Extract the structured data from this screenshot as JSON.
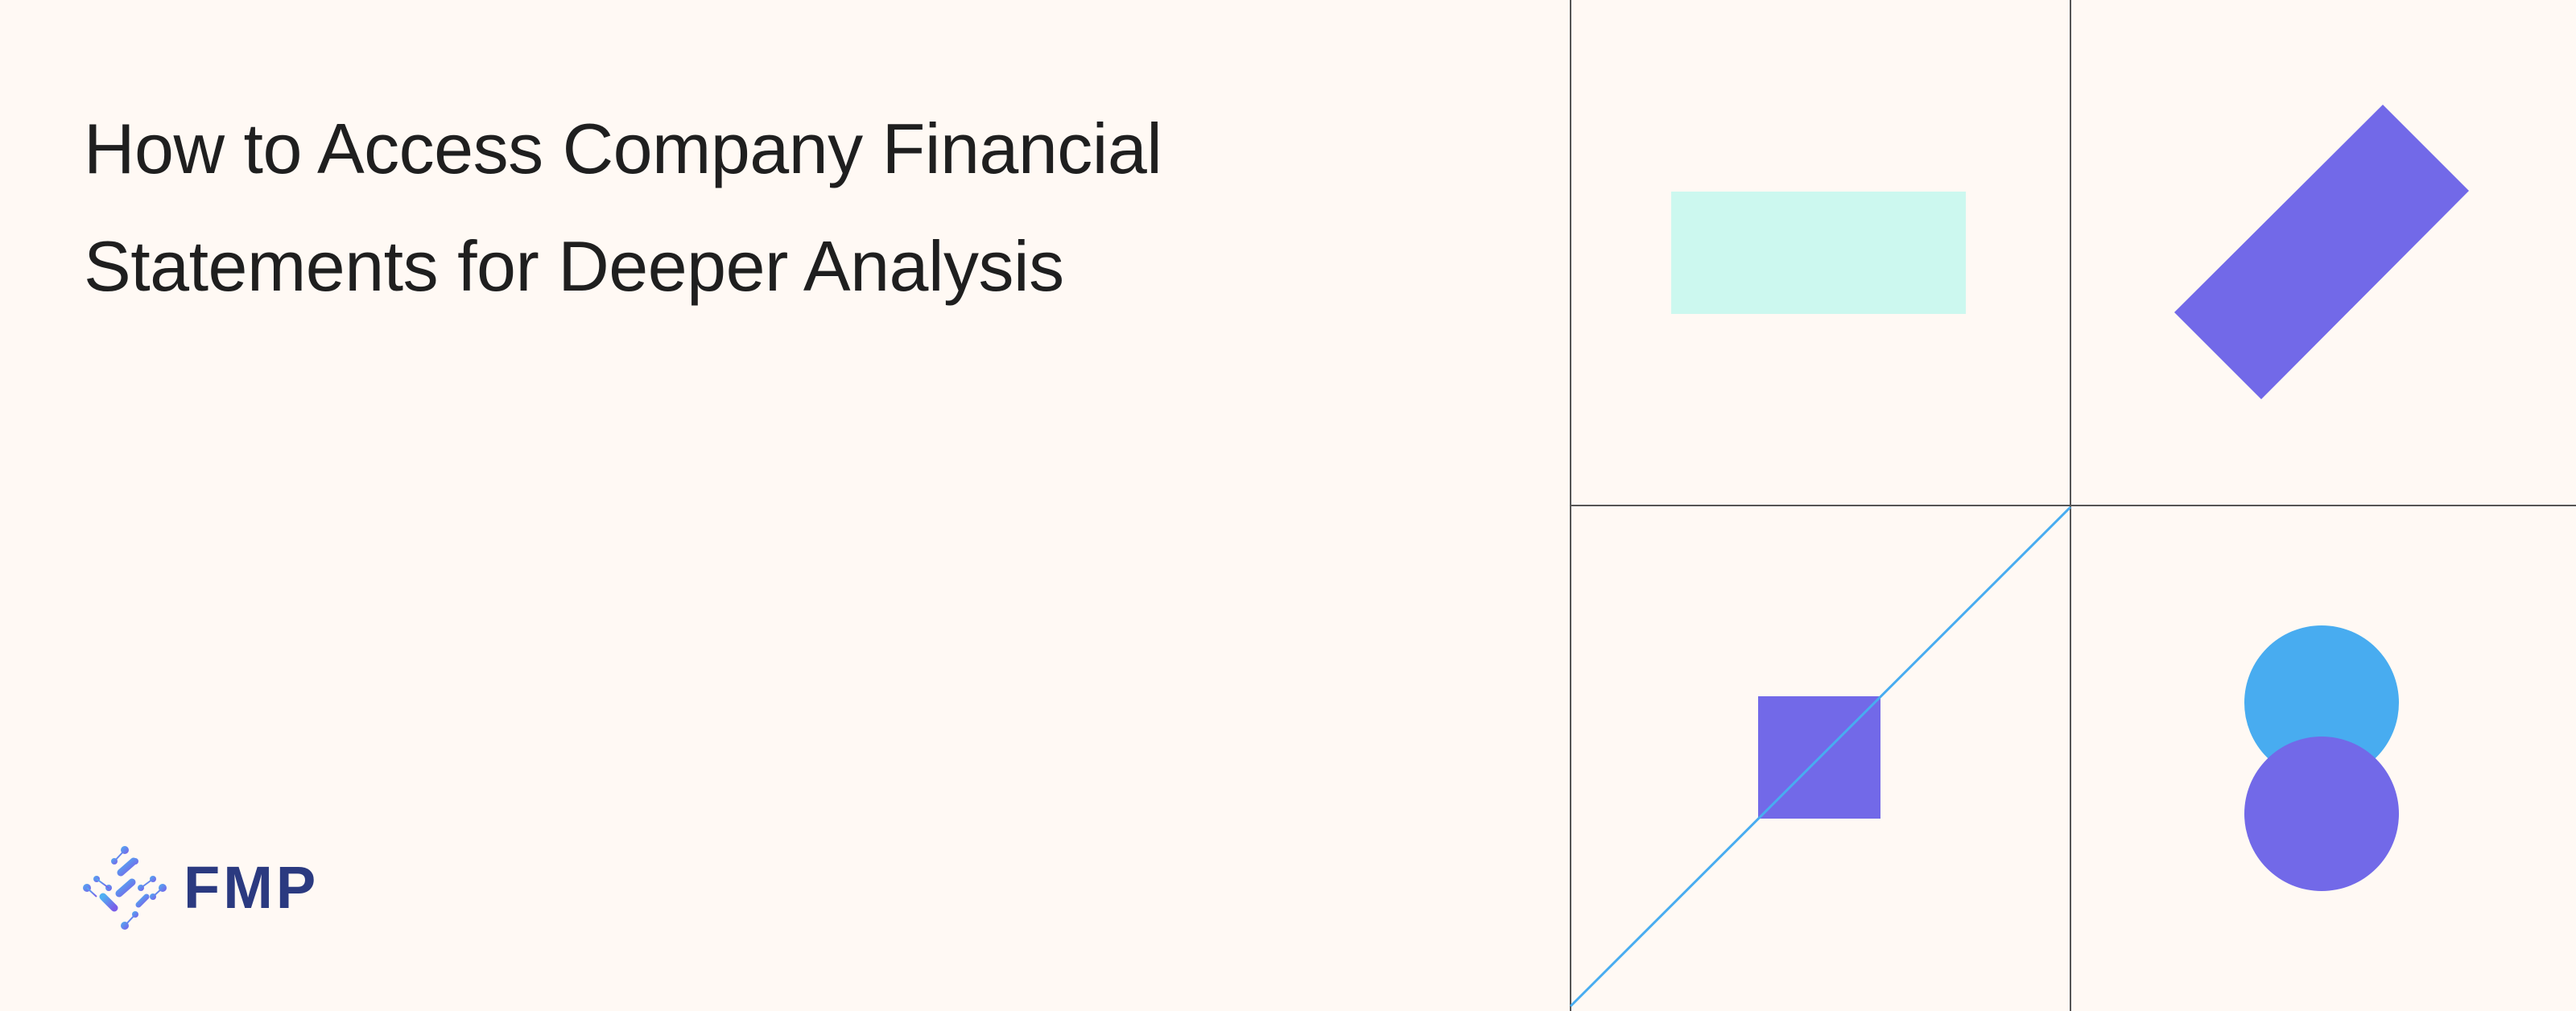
{
  "article": {
    "title_line_1": "How to Access Company Financial",
    "title_line_2": "Statements for Deeper Analysis"
  },
  "brand": {
    "name": "FMP",
    "logo_icon": "fmp-dotted-diamond-logo-icon"
  },
  "illustration": {
    "colors": {
      "background": "#fff9f4",
      "grid_line": "#555555",
      "mint": "#ccf8ef",
      "violet": "#7269e8",
      "sky_blue": "#48acf0",
      "brand_text": "#2b3a80"
    }
  }
}
